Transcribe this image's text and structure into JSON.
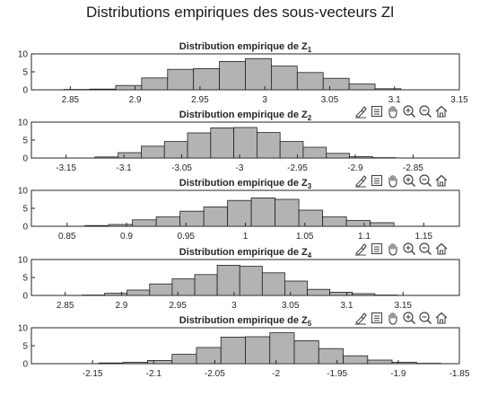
{
  "figure": {
    "title": "Distributions empiriques des sous-vecteurs Zl"
  },
  "colors": {
    "bar_fill": "#b3b3b3",
    "bar_edge": "#1f1f1f",
    "axis": "#262626",
    "text": "#262626"
  },
  "toolbar": {
    "icons": [
      "brush-icon",
      "datatip-icon",
      "pan-icon",
      "zoom-in-icon",
      "zoom-out-icon",
      "home-icon"
    ]
  },
  "chart_data": [
    {
      "type": "bar",
      "title": "Distribution empirique de Z",
      "title_sub": "1",
      "ylim": [
        0,
        10
      ],
      "yticks": [
        "0",
        "5",
        "10"
      ],
      "xlim": [
        2.82,
        3.15
      ],
      "xticks": [
        "2.85",
        "2.9",
        "2.95",
        "3",
        "3.05",
        "3.1",
        "3.15"
      ],
      "xtick_values": [
        2.85,
        2.9,
        2.95,
        3,
        3.05,
        3.1,
        3.15
      ],
      "bin_edges": [
        2.845,
        2.865,
        2.885,
        2.905,
        2.925,
        2.945,
        2.965,
        2.985,
        3.005,
        3.025,
        3.045,
        3.065,
        3.085,
        3.105
      ],
      "values": [
        0.1,
        0.2,
        1.2,
        3.3,
        5.7,
        5.9,
        7.9,
        8.7,
        6.6,
        4.8,
        3.2,
        1.6,
        0.3
      ]
    },
    {
      "type": "bar",
      "title": "Distribution empirique de Z",
      "title_sub": "2",
      "ylim": [
        0,
        10
      ],
      "yticks": [
        "0",
        "5",
        "10"
      ],
      "xlim": [
        -3.18,
        -2.81
      ],
      "xticks": [
        "-3.15",
        "-3.1",
        "-3.05",
        "-3",
        "-2.95",
        "-2.9",
        "-2.85"
      ],
      "xtick_values": [
        -3.15,
        -3.1,
        -3.05,
        -3,
        -2.95,
        -2.9,
        -2.85
      ],
      "bin_edges": [
        -3.125,
        -3.105,
        -3.085,
        -3.065,
        -3.045,
        -3.025,
        -3.005,
        -2.985,
        -2.965,
        -2.945,
        -2.925,
        -2.905,
        -2.885,
        -2.865
      ],
      "values": [
        0.3,
        1.5,
        3.3,
        4.6,
        7.0,
        8.4,
        8.5,
        7.1,
        4.6,
        3.0,
        1.3,
        0.4,
        0.1
      ]
    },
    {
      "type": "bar",
      "title": "Distribution empirique de Z",
      "title_sub": "3",
      "ylim": [
        0,
        10
      ],
      "yticks": [
        "0",
        "5",
        "10"
      ],
      "xlim": [
        0.82,
        1.18
      ],
      "xticks": [
        "0.85",
        "0.9",
        "0.95",
        "1",
        "1.05",
        "1.1",
        "1.15"
      ],
      "xtick_values": [
        0.85,
        0.9,
        0.95,
        1,
        1.05,
        1.1,
        1.15
      ],
      "bin_edges": [
        0.865,
        0.885,
        0.905,
        0.925,
        0.945,
        0.965,
        0.985,
        1.005,
        1.025,
        1.045,
        1.065,
        1.085,
        1.105,
        1.125
      ],
      "values": [
        0.2,
        0.5,
        1.8,
        2.6,
        4.2,
        5.4,
        7.2,
        7.9,
        7.5,
        4.5,
        2.6,
        1.6,
        1.0
      ]
    },
    {
      "type": "bar",
      "title": "Distribution empirique de Z",
      "title_sub": "4",
      "ylim": [
        0,
        10
      ],
      "yticks": [
        "0",
        "5",
        "10"
      ],
      "xlim": [
        2.82,
        3.2
      ],
      "xticks": [
        "2.85",
        "2.9",
        "2.95",
        "3",
        "3.05",
        "3.1",
        "3.15"
      ],
      "xtick_values": [
        2.85,
        2.9,
        2.95,
        3,
        3.05,
        3.1,
        3.15
      ],
      "bin_edges": [
        2.865,
        2.885,
        2.905,
        2.925,
        2.945,
        2.965,
        2.985,
        3.005,
        3.025,
        3.045,
        3.065,
        3.085,
        3.105,
        3.125,
        3.145
      ],
      "values": [
        0.1,
        0.6,
        1.5,
        3.2,
        4.6,
        5.8,
        8.4,
        8.1,
        6.3,
        4.0,
        1.7,
        0.9,
        0.5,
        0.1
      ]
    },
    {
      "type": "bar",
      "title": "Distribution empirique de Z",
      "title_sub": "5",
      "ylim": [
        0,
        10
      ],
      "yticks": [
        "0",
        "5",
        "10"
      ],
      "xlim": [
        -2.2,
        -1.85
      ],
      "xticks": [
        "-2.15",
        "-2.1",
        "-2.05",
        "-2",
        "-1.95",
        "-1.9",
        "-1.85"
      ],
      "xtick_values": [
        -2.15,
        -2.1,
        -2.05,
        -2,
        -1.95,
        -1.9,
        -1.85
      ],
      "bin_edges": [
        -2.145,
        -2.125,
        -2.105,
        -2.085,
        -2.065,
        -2.045,
        -2.025,
        -2.005,
        -1.985,
        -1.965,
        -1.945,
        -1.925,
        -1.905,
        -1.885,
        -1.865
      ],
      "values": [
        0.2,
        0.4,
        0.9,
        2.6,
        4.5,
        7.4,
        7.5,
        8.6,
        6.4,
        4.2,
        2.2,
        1.0,
        0.4,
        0.1
      ]
    }
  ]
}
